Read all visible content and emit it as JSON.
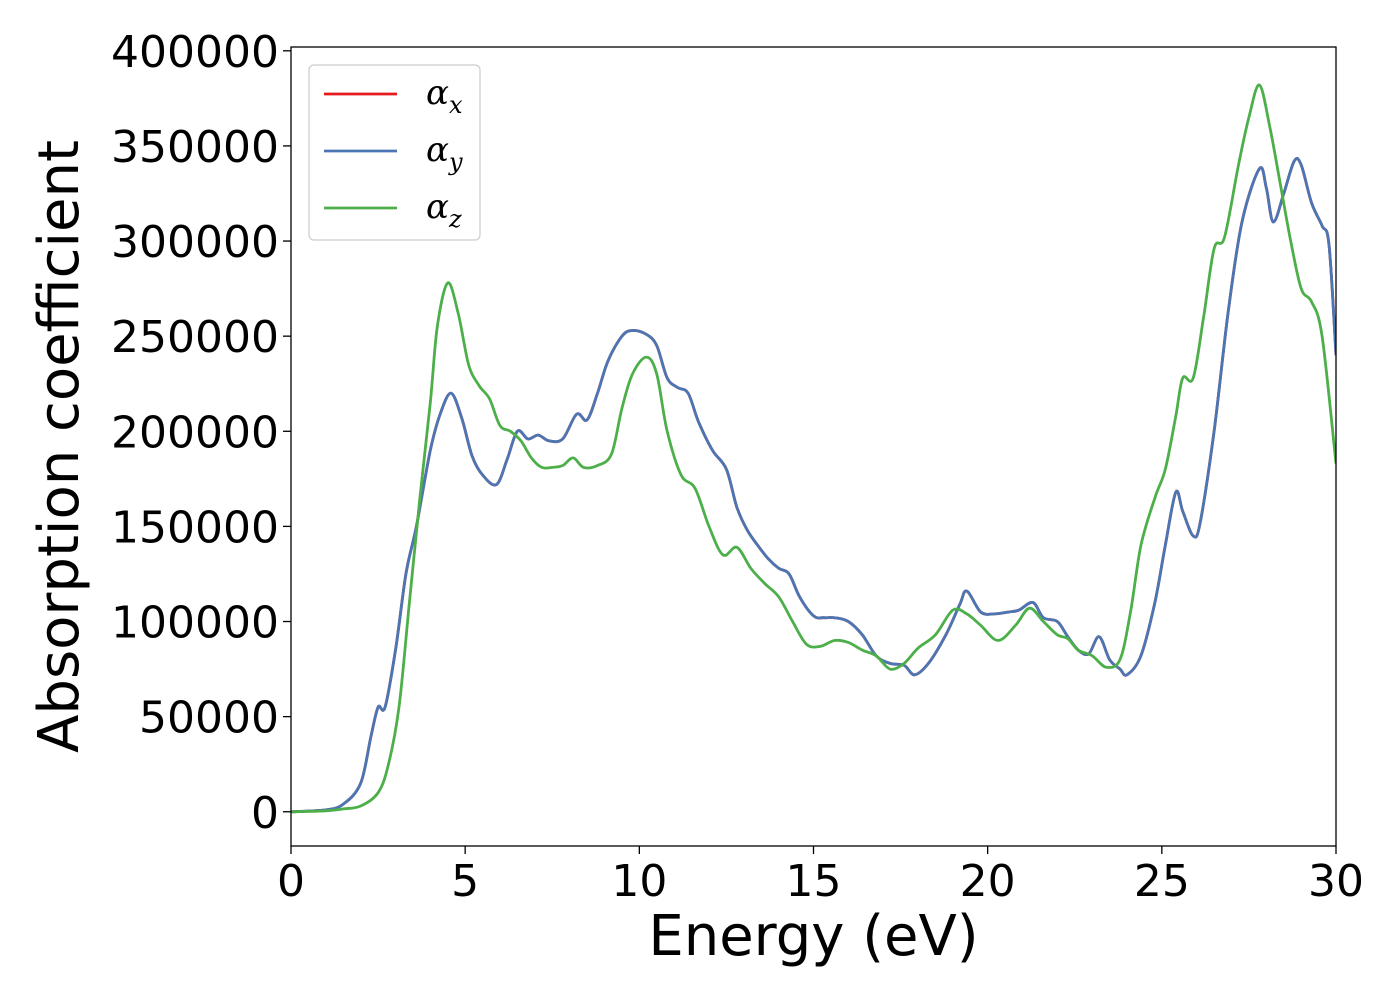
{
  "chart_data": {
    "type": "line",
    "title": "",
    "xlabel": "Energy (eV)",
    "ylabel": "Absorption coefficient",
    "xlim": [
      0,
      30
    ],
    "ylim": [
      -18000,
      402000
    ],
    "xticks": [
      0,
      5,
      10,
      15,
      20,
      25,
      30
    ],
    "xtick_labels": [
      "0",
      "5",
      "10",
      "15",
      "20",
      "25",
      "30"
    ],
    "yticks": [
      0,
      50000,
      100000,
      150000,
      200000,
      250000,
      300000,
      350000,
      400000
    ],
    "ytick_labels": [
      "0",
      "50000",
      "100000",
      "150000",
      "200000",
      "250000",
      "300000",
      "350000",
      "400000"
    ],
    "grid": false,
    "legend_position": "top-left",
    "series": [
      {
        "name": "α_x",
        "legend_base": "α",
        "legend_sub": "x",
        "color": "#e41a1c",
        "points": [
          [
            0,
            0
          ],
          [
            1,
            1000
          ],
          [
            1.5,
            4000
          ],
          [
            2,
            15000
          ],
          [
            2.3,
            40000
          ],
          [
            2.5,
            55000
          ],
          [
            2.7,
            55000
          ],
          [
            3,
            85000
          ],
          [
            3.3,
            125000
          ],
          [
            3.6,
            150000
          ],
          [
            4,
            190000
          ],
          [
            4.3,
            210000
          ],
          [
            4.6,
            220000
          ],
          [
            4.9,
            207000
          ],
          [
            5.2,
            187000
          ],
          [
            5.5,
            177000
          ],
          [
            5.9,
            172000
          ],
          [
            6.2,
            185000
          ],
          [
            6.5,
            200000
          ],
          [
            6.8,
            196000
          ],
          [
            7.1,
            198000
          ],
          [
            7.4,
            195000
          ],
          [
            7.8,
            196000
          ],
          [
            8.2,
            209000
          ],
          [
            8.5,
            206000
          ],
          [
            8.8,
            220000
          ],
          [
            9.1,
            237000
          ],
          [
            9.5,
            250000
          ],
          [
            9.8,
            253000
          ],
          [
            10.2,
            251000
          ],
          [
            10.5,
            245000
          ],
          [
            10.8,
            228000
          ],
          [
            11.1,
            223000
          ],
          [
            11.4,
            220000
          ],
          [
            11.7,
            205000
          ],
          [
            12.1,
            190000
          ],
          [
            12.5,
            180000
          ],
          [
            12.8,
            160000
          ],
          [
            13.1,
            148000
          ],
          [
            13.4,
            140000
          ],
          [
            13.7,
            133000
          ],
          [
            14.0,
            128000
          ],
          [
            14.3,
            125000
          ],
          [
            14.6,
            113000
          ],
          [
            15.0,
            103000
          ],
          [
            15.3,
            102000
          ],
          [
            15.6,
            102000
          ],
          [
            16.0,
            100000
          ],
          [
            16.4,
            93000
          ],
          [
            16.8,
            82000
          ],
          [
            17.2,
            78000
          ],
          [
            17.6,
            77000
          ],
          [
            17.9,
            72000
          ],
          [
            18.3,
            78000
          ],
          [
            18.8,
            93000
          ],
          [
            19.2,
            109000
          ],
          [
            19.4,
            116000
          ],
          [
            19.8,
            105000
          ],
          [
            20.2,
            104000
          ],
          [
            20.6,
            105000
          ],
          [
            20.9,
            106000
          ],
          [
            21.3,
            110000
          ],
          [
            21.6,
            102000
          ],
          [
            22.0,
            100000
          ],
          [
            22.3,
            92000
          ],
          [
            22.6,
            85000
          ],
          [
            22.9,
            83000
          ],
          [
            23.2,
            92000
          ],
          [
            23.5,
            80000
          ],
          [
            23.8,
            75000
          ],
          [
            24.0,
            72000
          ],
          [
            24.4,
            82000
          ],
          [
            24.8,
            110000
          ],
          [
            25.1,
            140000
          ],
          [
            25.4,
            168000
          ],
          [
            25.6,
            158000
          ],
          [
            25.9,
            145000
          ],
          [
            26.1,
            152000
          ],
          [
            26.5,
            200000
          ],
          [
            26.9,
            262000
          ],
          [
            27.3,
            310000
          ],
          [
            27.8,
            338000
          ],
          [
            28.0,
            328000
          ],
          [
            28.2,
            310000
          ],
          [
            28.5,
            325000
          ],
          [
            28.8,
            342000
          ],
          [
            29.0,
            340000
          ],
          [
            29.3,
            320000
          ],
          [
            29.6,
            308000
          ],
          [
            29.8,
            298000
          ],
          [
            30,
            240000
          ]
        ]
      },
      {
        "name": "α_y",
        "legend_base": "α",
        "legend_sub": "y",
        "color": "#4a77b4",
        "points": [
          [
            0,
            0
          ],
          [
            1,
            1000
          ],
          [
            1.5,
            4000
          ],
          [
            2,
            15000
          ],
          [
            2.3,
            40000
          ],
          [
            2.5,
            55000
          ],
          [
            2.7,
            55000
          ],
          [
            3,
            85000
          ],
          [
            3.3,
            125000
          ],
          [
            3.6,
            150000
          ],
          [
            4,
            190000
          ],
          [
            4.3,
            210000
          ],
          [
            4.6,
            220000
          ],
          [
            4.9,
            207000
          ],
          [
            5.2,
            187000
          ],
          [
            5.5,
            177000
          ],
          [
            5.9,
            172000
          ],
          [
            6.2,
            185000
          ],
          [
            6.5,
            200000
          ],
          [
            6.8,
            196000
          ],
          [
            7.1,
            198000
          ],
          [
            7.4,
            195000
          ],
          [
            7.8,
            196000
          ],
          [
            8.2,
            209000
          ],
          [
            8.5,
            206000
          ],
          [
            8.8,
            220000
          ],
          [
            9.1,
            237000
          ],
          [
            9.5,
            250000
          ],
          [
            9.8,
            253000
          ],
          [
            10.2,
            251000
          ],
          [
            10.5,
            245000
          ],
          [
            10.8,
            228000
          ],
          [
            11.1,
            223000
          ],
          [
            11.4,
            220000
          ],
          [
            11.7,
            205000
          ],
          [
            12.1,
            190000
          ],
          [
            12.5,
            180000
          ],
          [
            12.8,
            160000
          ],
          [
            13.1,
            148000
          ],
          [
            13.4,
            140000
          ],
          [
            13.7,
            133000
          ],
          [
            14.0,
            128000
          ],
          [
            14.3,
            125000
          ],
          [
            14.6,
            113000
          ],
          [
            15.0,
            103000
          ],
          [
            15.3,
            102000
          ],
          [
            15.6,
            102000
          ],
          [
            16.0,
            100000
          ],
          [
            16.4,
            93000
          ],
          [
            16.8,
            82000
          ],
          [
            17.2,
            78000
          ],
          [
            17.6,
            77000
          ],
          [
            17.9,
            72000
          ],
          [
            18.3,
            78000
          ],
          [
            18.8,
            93000
          ],
          [
            19.2,
            109000
          ],
          [
            19.4,
            116000
          ],
          [
            19.8,
            105000
          ],
          [
            20.2,
            104000
          ],
          [
            20.6,
            105000
          ],
          [
            20.9,
            106000
          ],
          [
            21.3,
            110000
          ],
          [
            21.6,
            102000
          ],
          [
            22.0,
            100000
          ],
          [
            22.3,
            92000
          ],
          [
            22.6,
            85000
          ],
          [
            22.9,
            83000
          ],
          [
            23.2,
            92000
          ],
          [
            23.5,
            80000
          ],
          [
            23.8,
            75000
          ],
          [
            24.0,
            72000
          ],
          [
            24.4,
            82000
          ],
          [
            24.8,
            110000
          ],
          [
            25.1,
            140000
          ],
          [
            25.4,
            168000
          ],
          [
            25.6,
            158000
          ],
          [
            25.9,
            145000
          ],
          [
            26.1,
            152000
          ],
          [
            26.5,
            200000
          ],
          [
            26.9,
            262000
          ],
          [
            27.3,
            310000
          ],
          [
            27.8,
            338000
          ],
          [
            28.0,
            328000
          ],
          [
            28.2,
            310000
          ],
          [
            28.5,
            325000
          ],
          [
            28.8,
            342000
          ],
          [
            29.0,
            340000
          ],
          [
            29.3,
            320000
          ],
          [
            29.6,
            308000
          ],
          [
            29.8,
            298000
          ],
          [
            30,
            240000
          ]
        ]
      },
      {
        "name": "α_z",
        "legend_base": "α",
        "legend_sub": "z",
        "color": "#4daf4a",
        "points": [
          [
            0,
            0
          ],
          [
            1,
            500
          ],
          [
            1.5,
            1500
          ],
          [
            2,
            3000
          ],
          [
            2.5,
            10000
          ],
          [
            2.8,
            25000
          ],
          [
            3.1,
            55000
          ],
          [
            3.4,
            110000
          ],
          [
            3.7,
            165000
          ],
          [
            4.0,
            215000
          ],
          [
            4.2,
            255000
          ],
          [
            4.5,
            278000
          ],
          [
            4.8,
            262000
          ],
          [
            5.1,
            235000
          ],
          [
            5.4,
            224000
          ],
          [
            5.7,
            217000
          ],
          [
            6.0,
            203000
          ],
          [
            6.3,
            200000
          ],
          [
            6.6,
            195000
          ],
          [
            6.9,
            186000
          ],
          [
            7.2,
            181000
          ],
          [
            7.5,
            181000
          ],
          [
            7.8,
            182000
          ],
          [
            8.1,
            186000
          ],
          [
            8.4,
            181000
          ],
          [
            8.8,
            182000
          ],
          [
            9.2,
            188000
          ],
          [
            9.5,
            212000
          ],
          [
            9.8,
            230000
          ],
          [
            10.2,
            239000
          ],
          [
            10.5,
            230000
          ],
          [
            10.8,
            200000
          ],
          [
            11.2,
            177000
          ],
          [
            11.6,
            170000
          ],
          [
            12.0,
            150000
          ],
          [
            12.4,
            135000
          ],
          [
            12.8,
            139000
          ],
          [
            13.2,
            128000
          ],
          [
            13.6,
            120000
          ],
          [
            14.0,
            113000
          ],
          [
            14.4,
            100000
          ],
          [
            14.8,
            88000
          ],
          [
            15.2,
            87000
          ],
          [
            15.6,
            90000
          ],
          [
            16.0,
            89000
          ],
          [
            16.4,
            85000
          ],
          [
            16.8,
            82000
          ],
          [
            17.2,
            75000
          ],
          [
            17.6,
            78000
          ],
          [
            18.0,
            86000
          ],
          [
            18.5,
            93000
          ],
          [
            19.0,
            106000
          ],
          [
            19.4,
            104000
          ],
          [
            19.8,
            98000
          ],
          [
            20.3,
            90000
          ],
          [
            20.8,
            98000
          ],
          [
            21.2,
            107000
          ],
          [
            21.6,
            100000
          ],
          [
            22.0,
            93000
          ],
          [
            22.3,
            91000
          ],
          [
            22.6,
            85000
          ],
          [
            23.0,
            82000
          ],
          [
            23.4,
            76000
          ],
          [
            23.8,
            80000
          ],
          [
            24.1,
            105000
          ],
          [
            24.4,
            140000
          ],
          [
            24.8,
            165000
          ],
          [
            25.1,
            180000
          ],
          [
            25.4,
            208000
          ],
          [
            25.6,
            228000
          ],
          [
            25.9,
            228000
          ],
          [
            26.2,
            260000
          ],
          [
            26.5,
            296000
          ],
          [
            26.8,
            302000
          ],
          [
            27.2,
            340000
          ],
          [
            27.5,
            365000
          ],
          [
            27.8,
            382000
          ],
          [
            28.1,
            360000
          ],
          [
            28.4,
            330000
          ],
          [
            28.7,
            300000
          ],
          [
            29.0,
            275000
          ],
          [
            29.3,
            268000
          ],
          [
            29.6,
            250000
          ],
          [
            30,
            183000
          ]
        ]
      }
    ]
  }
}
